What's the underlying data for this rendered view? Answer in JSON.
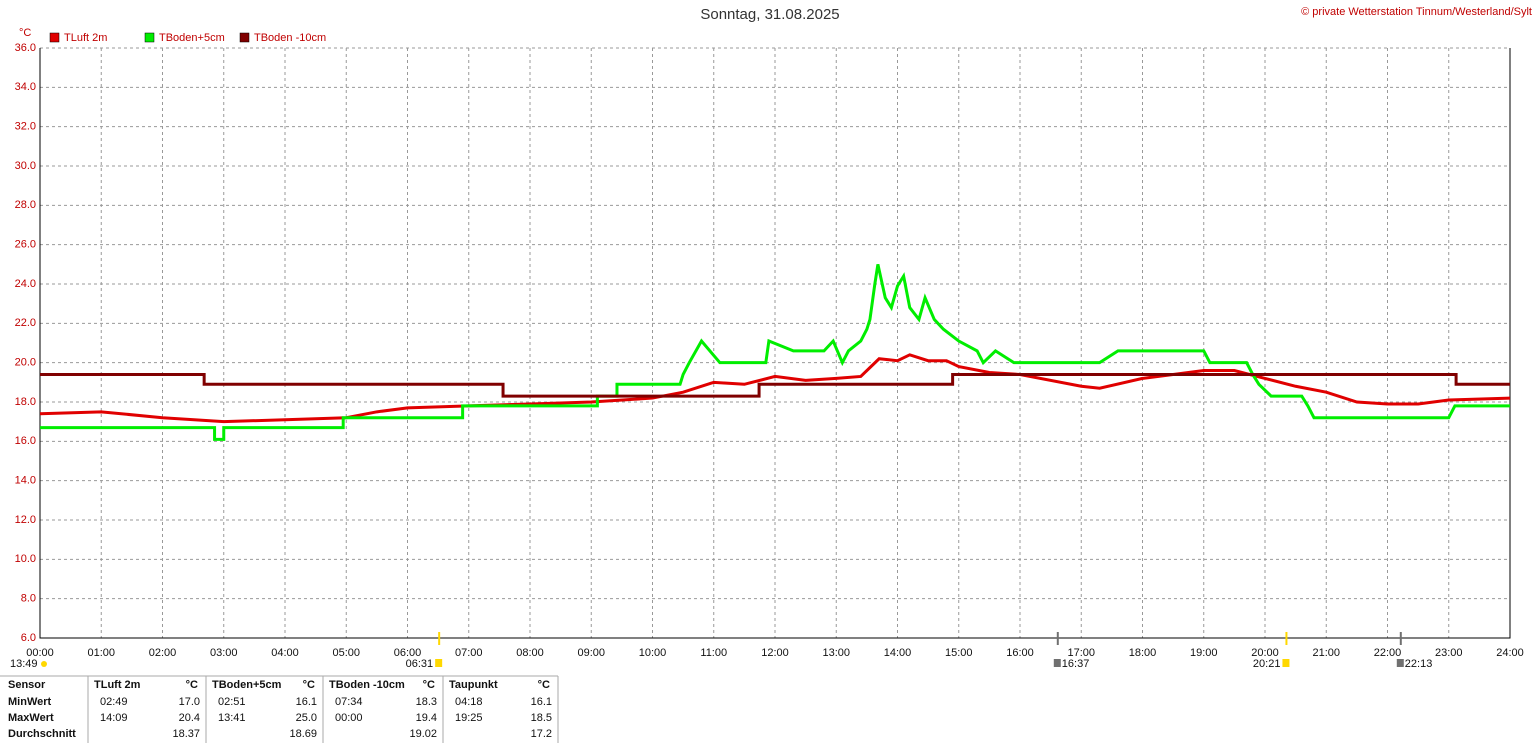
{
  "chart_data": {
    "type": "line",
    "title": "Sonntag, 31.08.2025",
    "copyright": "© private Wetterstation Tinnum/Westerland/Sylt",
    "y_unit": "°C",
    "xlim": [
      0,
      24
    ],
    "ylim": [
      6,
      36
    ],
    "grid": true,
    "xticks": [
      {
        "value": 0,
        "label": "00:00"
      },
      {
        "value": 1,
        "label": "01:00"
      },
      {
        "value": 2,
        "label": "02:00"
      },
      {
        "value": 3,
        "label": "03:00"
      },
      {
        "value": 4,
        "label": "04:00"
      },
      {
        "value": 5,
        "label": "05:00"
      },
      {
        "value": 6,
        "label": "06:00"
      },
      {
        "value": 7,
        "label": "07:00"
      },
      {
        "value": 8,
        "label": "08:00"
      },
      {
        "value": 9,
        "label": "09:00"
      },
      {
        "value": 10,
        "label": "10:00"
      },
      {
        "value": 11,
        "label": "11:00"
      },
      {
        "value": 12,
        "label": "12:00"
      },
      {
        "value": 13,
        "label": "13:00"
      },
      {
        "value": 14,
        "label": "14:00"
      },
      {
        "value": 15,
        "label": "15:00"
      },
      {
        "value": 16,
        "label": "16:00"
      },
      {
        "value": 17,
        "label": "17:00"
      },
      {
        "value": 18,
        "label": "18:00"
      },
      {
        "value": 19,
        "label": "19:00"
      },
      {
        "value": 20,
        "label": "20:00"
      },
      {
        "value": 21,
        "label": "21:00"
      },
      {
        "value": 22,
        "label": "22:00"
      },
      {
        "value": 23,
        "label": "23:00"
      },
      {
        "value": 24,
        "label": "24:00"
      }
    ],
    "yticks": [
      {
        "value": 6,
        "label": "6.0"
      },
      {
        "value": 8,
        "label": "8.0"
      },
      {
        "value": 10,
        "label": "10.0"
      },
      {
        "value": 12,
        "label": "12.0"
      },
      {
        "value": 14,
        "label": "14.0"
      },
      {
        "value": 16,
        "label": "16.0"
      },
      {
        "value": 18,
        "label": "18.0"
      },
      {
        "value": 20,
        "label": "20.0"
      },
      {
        "value": 22,
        "label": "22.0"
      },
      {
        "value": 24,
        "label": "24.0"
      },
      {
        "value": 26,
        "label": "26.0"
      },
      {
        "value": 28,
        "label": "28.0"
      },
      {
        "value": 30,
        "label": "30.0"
      },
      {
        "value": 32,
        "label": "32.0"
      },
      {
        "value": 34,
        "label": "34.0"
      },
      {
        "value": 36,
        "label": "36.0"
      }
    ],
    "series": [
      {
        "name": "TLuft 2m",
        "color": "#e00000",
        "x": [
          0,
          1,
          2,
          3,
          4,
          5,
          5.5,
          6,
          7,
          8,
          9,
          10,
          10.5,
          11,
          11.5,
          12,
          12.5,
          13,
          13.4,
          13.7,
          14,
          14.2,
          14.5,
          14.8,
          15,
          15.5,
          16,
          17,
          17.3,
          18,
          18.5,
          19,
          19.5,
          20,
          20.5,
          21,
          21.5,
          22,
          22.5,
          23,
          24
        ],
        "values": [
          17.4,
          17.5,
          17.2,
          17.0,
          17.1,
          17.2,
          17.5,
          17.7,
          17.8,
          17.9,
          18.0,
          18.2,
          18.5,
          19.0,
          18.9,
          19.3,
          19.1,
          19.2,
          19.3,
          20.2,
          20.1,
          20.4,
          20.1,
          20.1,
          19.8,
          19.5,
          19.4,
          18.8,
          18.7,
          19.2,
          19.4,
          19.6,
          19.6,
          19.2,
          18.8,
          18.5,
          18.0,
          17.9,
          17.9,
          18.1,
          18.2
        ]
      },
      {
        "name": "TBoden+5cm",
        "color": "#00ee00",
        "x": [
          0,
          2.85,
          2.85,
          3.0,
          3.0,
          4.95,
          4.95,
          6.9,
          6.9,
          9.1,
          9.1,
          9.42,
          9.42,
          10.45,
          10.5,
          10.6,
          10.8,
          11.1,
          11.85,
          11.9,
          12.3,
          12.8,
          12.95,
          13.1,
          13.2,
          13.4,
          13.5,
          13.55,
          13.63,
          13.68,
          13.8,
          13.9,
          14.0,
          14.1,
          14.2,
          14.35,
          14.45,
          14.6,
          14.75,
          15.0,
          15.3,
          15.4,
          15.6,
          15.9,
          17.3,
          17.6,
          19.0,
          19.1,
          19.7,
          19.8,
          19.9,
          20.1,
          20.6,
          20.7,
          20.8,
          23.0,
          23.1,
          24
        ],
        "values": [
          16.7,
          16.7,
          16.1,
          16.1,
          16.7,
          16.7,
          17.2,
          17.2,
          17.8,
          17.8,
          18.3,
          18.3,
          18.9,
          18.9,
          19.4,
          20.0,
          21.1,
          20.0,
          20.0,
          21.1,
          20.6,
          20.6,
          21.1,
          20.0,
          20.6,
          21.1,
          21.7,
          22.2,
          24.0,
          25.0,
          23.3,
          22.8,
          23.9,
          24.4,
          22.8,
          22.2,
          23.3,
          22.2,
          21.7,
          21.1,
          20.6,
          20.0,
          20.6,
          20.0,
          20.0,
          20.6,
          20.6,
          20.0,
          20.0,
          19.4,
          18.9,
          18.3,
          18.3,
          17.8,
          17.2,
          17.2,
          17.8,
          17.8
        ]
      },
      {
        "name": "TBoden -10cm",
        "color": "#800000",
        "x": [
          0,
          2.68,
          2.68,
          7.56,
          7.56,
          11.74,
          11.74,
          14.9,
          14.9,
          23.12,
          23.12,
          24
        ],
        "values": [
          19.4,
          19.4,
          18.9,
          18.9,
          18.3,
          18.3,
          18.9,
          18.9,
          19.4,
          19.4,
          18.9,
          18.9
        ]
      }
    ],
    "annotations": [
      {
        "time": 6.517,
        "label": "06:31",
        "color": "#ffd800"
      },
      {
        "time": 16.617,
        "label": "16:37",
        "color": "#707070"
      },
      {
        "time": 20.35,
        "label": "20:21",
        "color": "#ffd800"
      },
      {
        "time": 22.217,
        "label": "22:13",
        "color": "#707070"
      }
    ],
    "day_length": "13:49"
  },
  "table": {
    "columns": [
      "Sensor",
      "TLuft 2m",
      "°C",
      "TBoden+5cm",
      "°C",
      "TBoden -10cm",
      "°C",
      "Taupunkt",
      "°C"
    ],
    "rows": [
      [
        "MinWert",
        "02:49",
        "17.0",
        "02:51",
        "16.1",
        "07:34",
        "18.3",
        "04:18",
        "16.1"
      ],
      [
        "MaxWert",
        "14:09",
        "20.4",
        "13:41",
        "25.0",
        "00:00",
        "19.4",
        "19:25",
        "18.5"
      ],
      [
        "Durchschnitt",
        null,
        "18.37",
        null,
        "18.69",
        null,
        "19.02",
        null,
        "17.2"
      ]
    ]
  }
}
